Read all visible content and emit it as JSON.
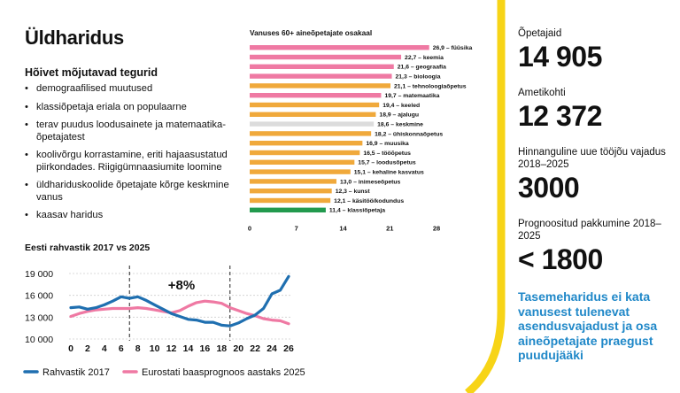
{
  "title": "Üldharidus",
  "factors": {
    "heading": "Hõivet mõjutavad tegurid",
    "items": [
      "demograafilised muutused",
      "klassiõpetaja eriala on populaarne",
      "terav puudus loodusainete ja matemaatika- õpetajatest",
      "koolivõrgu korrastamine, eriti hajaasustatud piirkondades. Riigigümnaasiumite loomine",
      "üldhariduskoolide õpetajate kõrge keskmine vanus",
      "kaasav haridus"
    ]
  },
  "stats": [
    {
      "label": "Õpetajaid",
      "value": "14 905"
    },
    {
      "label": "Ametikohti",
      "value": "12 372"
    },
    {
      "label": "Hinnanguline uue tööjõu vajadus 2018–2025",
      "value": "3000"
    },
    {
      "label": "Prognoositud pakkumine 2018–2025",
      "value": "< 1800"
    }
  ],
  "conclusion": "Tasemeharidus ei kata vanusest tulenevat asendusvajadust ja osa aineõpetajate praegust puudujääki",
  "colors": {
    "accent_yellow": "#f7d417",
    "bar_pink": "#ef79a3",
    "bar_orange": "#f0a93b",
    "bar_gray": "#dcdcdc",
    "bar_green": "#229a4e",
    "line_blue": "#1f6fb0",
    "line_pink": "#ef79a3",
    "text_blue": "#2088c8"
  },
  "chart_data": [
    {
      "type": "bar",
      "orientation": "horizontal",
      "title": "Vanuses 60+ aineõpetajate osakaal",
      "xlim": [
        0,
        28
      ],
      "xticks": [
        0,
        7,
        14,
        21,
        28
      ],
      "categories": [
        "füüsika",
        "keemia",
        "geograafia",
        "bioloogia",
        "tehnoloogiaõpetus",
        "matemaatika",
        "keeled",
        "ajalugu",
        "keskmine",
        "ühiskonnaõpetus",
        "muusika",
        "tööõpetus",
        "loodusõpetus",
        "kehaline kasvatus",
        "inimeseõpetus",
        "kunst",
        "käsitöö/kodundus",
        "klassiõpetaja"
      ],
      "values": [
        26.9,
        22.7,
        21.6,
        21.3,
        21.1,
        19.7,
        19.4,
        18.9,
        18.6,
        18.2,
        16.9,
        16.5,
        15.7,
        15.1,
        13.0,
        12.3,
        12.1,
        11.4
      ],
      "value_labels": [
        "26,9",
        "22,7",
        "21,6",
        "21,3",
        "21,1",
        "19,7",
        "19,4",
        "18,9",
        "18,6",
        "18,2",
        "16,9",
        "16,5",
        "15,7",
        "15,1",
        "13,0",
        "12,3",
        "12,1",
        "11,4"
      ],
      "bar_colors": [
        "pink",
        "pink",
        "pink",
        "pink",
        "orange",
        "pink",
        "orange",
        "orange",
        "gray",
        "orange",
        "orange",
        "orange",
        "orange",
        "orange",
        "orange",
        "orange",
        "orange",
        "green"
      ]
    },
    {
      "type": "line",
      "title": "Eesti rahvastik 2017 vs 2025",
      "x": [
        0,
        1,
        2,
        3,
        4,
        5,
        6,
        7,
        8,
        9,
        10,
        11,
        12,
        13,
        14,
        15,
        16,
        17,
        18,
        19,
        20,
        21,
        22,
        23,
        24,
        25,
        26
      ],
      "xticks": [
        0,
        2,
        4,
        6,
        8,
        10,
        12,
        14,
        16,
        18,
        20,
        22,
        24,
        26
      ],
      "ylim": [
        10000,
        19000
      ],
      "yticks": [
        10000,
        13000,
        16000,
        19000
      ],
      "ytick_labels": [
        "10 000",
        "13 000",
        "16 000",
        "19 000"
      ],
      "series": [
        {
          "name": "Rahvastik 2017",
          "color": "blue",
          "values": [
            14300,
            14400,
            14100,
            14300,
            14700,
            15200,
            15800,
            15600,
            15800,
            15300,
            14700,
            14100,
            13500,
            13100,
            12700,
            12600,
            12300,
            12300,
            11900,
            11800,
            12200,
            12800,
            13300,
            14200,
            16200,
            16700,
            18600
          ]
        },
        {
          "name": "Eurostati baasprognoos aastaks 2025",
          "color": "pink",
          "values": [
            13100,
            13500,
            13800,
            14000,
            14100,
            14200,
            14200,
            14200,
            14300,
            14200,
            14000,
            13800,
            13600,
            13900,
            14500,
            15000,
            15200,
            15100,
            14900,
            14300,
            13900,
            13500,
            13200,
            12800,
            12600,
            12500,
            12100
          ]
        }
      ],
      "annotation": "+8%",
      "dashed_lines_x": [
        7,
        19
      ]
    }
  ]
}
